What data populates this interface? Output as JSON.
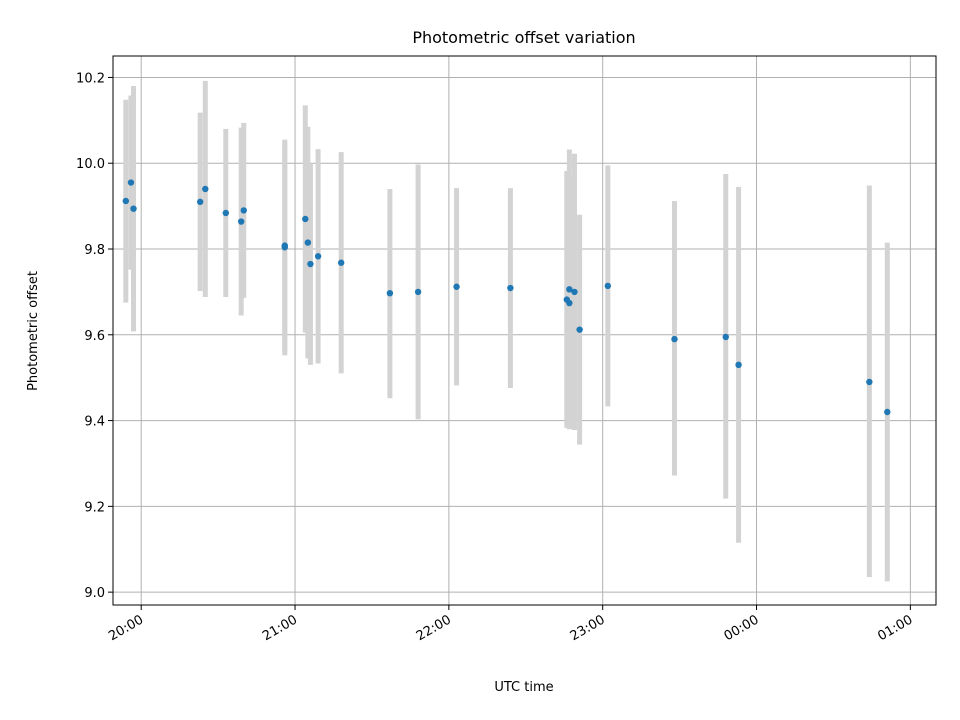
{
  "chart_data": {
    "type": "scatter",
    "title": "Photometric offset variation",
    "xlabel": "UTC time",
    "ylabel": "Photometric offset",
    "x_axis": "time",
    "xlim": [
      "19:49",
      "01:10"
    ],
    "ylim": [
      8.97,
      10.25
    ],
    "x_ticks": [
      {
        "label": "20:00",
        "time": "20:00"
      },
      {
        "label": "21:00",
        "time": "21:00"
      },
      {
        "label": "22:00",
        "time": "22:00"
      },
      {
        "label": "23:00",
        "time": "23:00"
      },
      {
        "label": "00:00",
        "time": "00:00"
      },
      {
        "label": "01:00",
        "time": "01:00"
      }
    ],
    "y_ticks": [
      {
        "label": "9.0",
        "value": 9.0
      },
      {
        "label": "9.2",
        "value": 9.2
      },
      {
        "label": "9.4",
        "value": 9.4
      },
      {
        "label": "9.6",
        "value": 9.6
      },
      {
        "label": "9.8",
        "value": 9.8
      },
      {
        "label": "10.0",
        "value": 10.0
      },
      {
        "label": "10.2",
        "value": 10.2
      }
    ],
    "grid": true,
    "marker_color": "#1f77b4",
    "errorbar_color": "#d3d3d3",
    "points": [
      {
        "time": "19:54",
        "y": 9.912,
        "ylo": 9.675,
        "yhi": 10.148
      },
      {
        "time": "19:56",
        "y": 9.955,
        "ylo": 9.752,
        "yhi": 10.158
      },
      {
        "time": "19:57",
        "y": 9.894,
        "ylo": 9.608,
        "yhi": 10.18
      },
      {
        "time": "20:23",
        "y": 9.91,
        "ylo": 9.702,
        "yhi": 10.118
      },
      {
        "time": "20:25",
        "y": 9.94,
        "ylo": 9.688,
        "yhi": 10.192
      },
      {
        "time": "20:33",
        "y": 9.884,
        "ylo": 9.688,
        "yhi": 10.08
      },
      {
        "time": "20:39",
        "y": 9.864,
        "ylo": 9.645,
        "yhi": 10.083
      },
      {
        "time": "20:40",
        "y": 9.89,
        "ylo": 9.686,
        "yhi": 10.094
      },
      {
        "time": "20:56",
        "y": 9.804,
        "ylo": 9.552,
        "yhi": 10.055
      },
      {
        "time": "20:56",
        "y": 9.808,
        "ylo": 9.56,
        "yhi": 10.05
      },
      {
        "time": "21:04",
        "y": 9.87,
        "ylo": 9.605,
        "yhi": 10.135
      },
      {
        "time": "21:05",
        "y": 9.815,
        "ylo": 9.545,
        "yhi": 10.085
      },
      {
        "time": "21:06",
        "y": 9.765,
        "ylo": 9.53,
        "yhi": 10.0
      },
      {
        "time": "21:09",
        "y": 9.783,
        "ylo": 9.533,
        "yhi": 10.033
      },
      {
        "time": "21:18",
        "y": 9.768,
        "ylo": 9.51,
        "yhi": 10.026
      },
      {
        "time": "21:37",
        "y": 9.697,
        "ylo": 9.452,
        "yhi": 9.94
      },
      {
        "time": "21:48",
        "y": 9.7,
        "ylo": 9.403,
        "yhi": 9.997
      },
      {
        "time": "22:03",
        "y": 9.712,
        "ylo": 9.482,
        "yhi": 9.942
      },
      {
        "time": "22:24",
        "y": 9.709,
        "ylo": 9.476,
        "yhi": 9.942
      },
      {
        "time": "22:46",
        "y": 9.682,
        "ylo": 9.383,
        "yhi": 9.982
      },
      {
        "time": "22:47",
        "y": 9.674,
        "ylo": 9.38,
        "yhi": 9.968
      },
      {
        "time": "22:47",
        "y": 9.706,
        "ylo": 9.38,
        "yhi": 10.032
      },
      {
        "time": "22:49",
        "y": 9.7,
        "ylo": 9.378,
        "yhi": 10.022
      },
      {
        "time": "22:51",
        "y": 9.612,
        "ylo": 9.344,
        "yhi": 9.88
      },
      {
        "time": "23:02",
        "y": 9.714,
        "ylo": 9.433,
        "yhi": 9.995
      },
      {
        "time": "23:28",
        "y": 9.59,
        "ylo": 9.272,
        "yhi": 9.912
      },
      {
        "time": "23:48",
        "y": 9.595,
        "ylo": 9.218,
        "yhi": 9.975
      },
      {
        "time": "23:53",
        "y": 9.53,
        "ylo": 9.115,
        "yhi": 9.945
      },
      {
        "time": "00:44",
        "y": 9.49,
        "ylo": 9.035,
        "yhi": 9.948
      },
      {
        "time": "00:51",
        "y": 9.42,
        "ylo": 9.025,
        "yhi": 9.815
      }
    ]
  }
}
